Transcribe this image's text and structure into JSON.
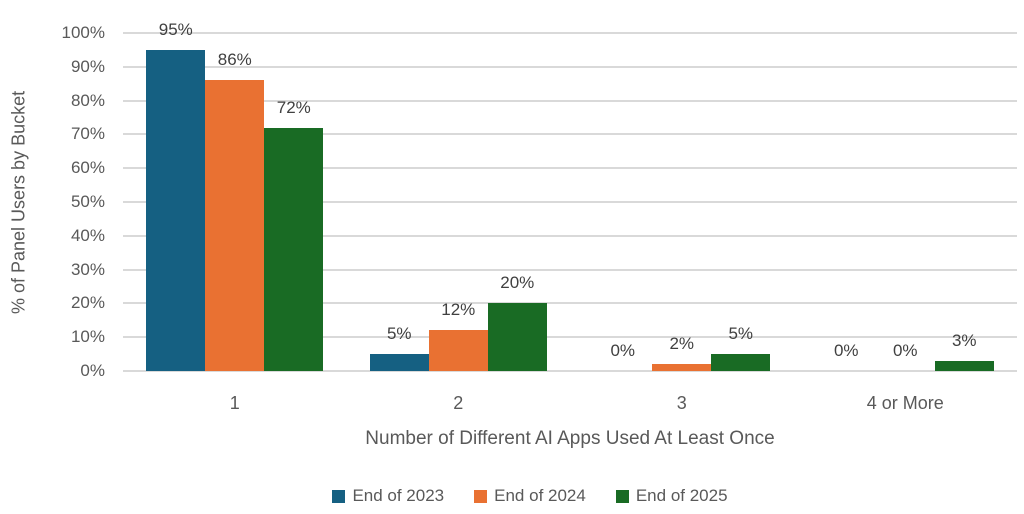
{
  "chart_data": {
    "type": "bar",
    "title": "",
    "categories": [
      "1",
      "2",
      "3",
      "4 or More"
    ],
    "series": [
      {
        "name": "End of 2023",
        "color": "#156082",
        "values": [
          95,
          5,
          0,
          0
        ]
      },
      {
        "name": "End of 2024",
        "color": "#E97132",
        "values": [
          86,
          12,
          2,
          0
        ]
      },
      {
        "name": "End of 2025",
        "color": "#196B24",
        "values": [
          72,
          20,
          5,
          3
        ]
      }
    ],
    "data_labels": [
      [
        "95%",
        "5%",
        "0%",
        "0%"
      ],
      [
        "86%",
        "12%",
        "2%",
        "0%"
      ],
      [
        "72%",
        "20%",
        "5%",
        "3%"
      ]
    ],
    "xlabel": "Number of Different AI Apps Used At Least Once",
    "ylabel": "% of Panel Users by Bucket",
    "ylim": [
      0,
      100
    ],
    "ytick_step": 10,
    "ytick_labels": [
      "0%",
      "10%",
      "20%",
      "30%",
      "40%",
      "50%",
      "60%",
      "70%",
      "80%",
      "90%",
      "100%"
    ],
    "grid": true,
    "legend_position": "bottom",
    "colors": {
      "axis_text": "#595959",
      "data_label_text": "#404040",
      "gridline": "#D9D9D9",
      "background": "#FFFFFF"
    }
  }
}
